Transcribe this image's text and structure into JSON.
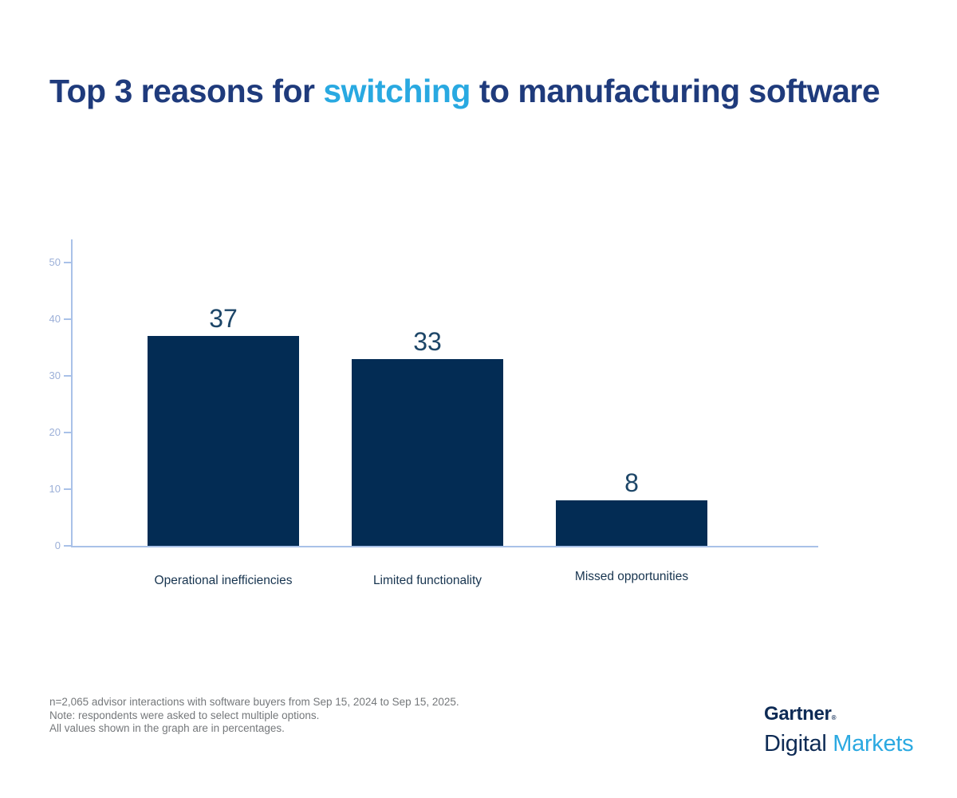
{
  "title": {
    "prefix": "Top 3 reasons for ",
    "highlight": "switching",
    "suffix": " to manufacturing software"
  },
  "chart_data": {
    "type": "bar",
    "title": "Top 3 reasons for switching to manufacturing software",
    "categories": [
      "Operational inefficiencies",
      "Limited functionality",
      "Missed opportunities"
    ],
    "values": [
      37,
      33,
      8
    ],
    "value_unit": "percent",
    "xlabel": "",
    "ylabel": "",
    "ylim": [
      0,
      50
    ],
    "yticks": [
      0,
      10,
      20,
      30,
      40,
      50
    ],
    "grid": false,
    "legend": false,
    "bar_color": "#032c54",
    "axis_color": "#a9c1e8",
    "tick_label_color": "#9cb0d8",
    "value_label_color": "#1d4668",
    "category_label_color": "#17344f"
  },
  "footnotes": {
    "lines": [
      "n=2,065 advisor interactions with software buyers from Sep 15, 2024 to Sep 15, 2025.",
      "Note: respondents were asked to select multiple options.",
      "All values shown in the graph are in percentages."
    ]
  },
  "logo": {
    "brand": "Gartner",
    "registered": "®",
    "sub_brand_dark": "Digital",
    "sub_brand_light": "Markets"
  },
  "colors": {
    "title_navy": "#1f3b7c",
    "highlight_blue": "#29a9e1",
    "bar_navy": "#032c54",
    "axis_light_blue": "#a9c1e8",
    "logo_navy": "#0e2b55",
    "logo_blue": "#2ba9e1",
    "footnote_gray": "#75787b",
    "background": "#ffffff"
  }
}
